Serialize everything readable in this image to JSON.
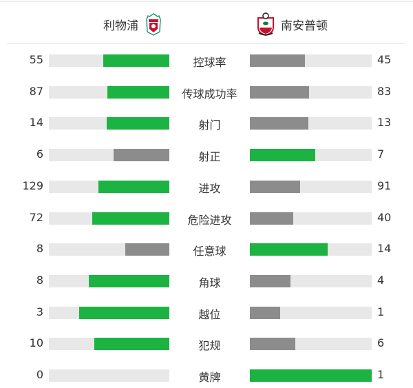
{
  "colors": {
    "higher": "#1db343",
    "lower": "#8c8c8c",
    "track": "#e8e8e8"
  },
  "home": {
    "name": "利物浦",
    "logo": "liverpool-crest-icon"
  },
  "away": {
    "name": "南安普顿",
    "logo": "southampton-crest-icon"
  },
  "stats": [
    {
      "label": "控球率",
      "home": 55,
      "away": 45
    },
    {
      "label": "传球成功率",
      "home": 87,
      "away": 83
    },
    {
      "label": "射门",
      "home": 14,
      "away": 13
    },
    {
      "label": "射正",
      "home": 6,
      "away": 7
    },
    {
      "label": "进攻",
      "home": 129,
      "away": 91
    },
    {
      "label": "危险进攻",
      "home": 72,
      "away": 40
    },
    {
      "label": "任意球",
      "home": 8,
      "away": 14
    },
    {
      "label": "角球",
      "home": 8,
      "away": 4
    },
    {
      "label": "越位",
      "home": 3,
      "away": 1
    },
    {
      "label": "犯规",
      "home": 10,
      "away": 6
    },
    {
      "label": "黄牌",
      "home": 0,
      "away": 1
    }
  ]
}
